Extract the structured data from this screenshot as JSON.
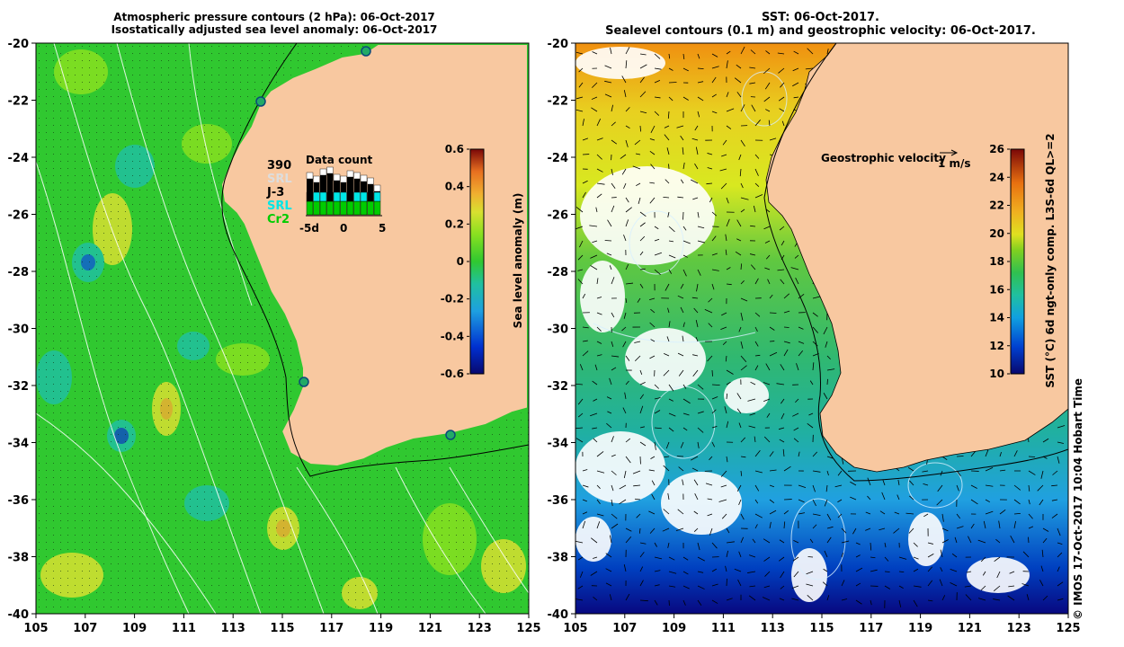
{
  "left_panel": {
    "title_line1": "Atmospheric pressure contours (2 hPa): 06-Oct-2017",
    "title_line2": "Isostatically adjusted sea level anomaly: 06-Oct-2017",
    "colorbar_label": "Sea level anomaly (m)",
    "colorbar_ticks": [
      "0.6",
      "0.4",
      "0.2",
      "0",
      "-0.2",
      "-0.4",
      "-0.6"
    ],
    "data_count": {
      "title": "Data count",
      "labels": [
        {
          "text": "390",
          "color": "#000000"
        },
        {
          "text": "SRL",
          "color": "#dddddd"
        },
        {
          "text": "J-3",
          "color": "#000000"
        },
        {
          "text": "SRL",
          "color": "#00e6e6"
        },
        {
          "text": "Cr2",
          "color": "#00cc00"
        }
      ],
      "x_ticks": [
        "-5d",
        "0",
        "5"
      ]
    }
  },
  "right_panel": {
    "title_line1": "SST: 06-Oct-2017.",
    "title_line2": "Sealevel contours (0.1 m) and geostrophic velocity: 06-Oct-2017.",
    "velocity_label": "Geostrophic velocity",
    "velocity_scale": "1 m/s",
    "colorbar_label": "SST (°C) 6d ngt-only comp. L3S-6d QL>=2",
    "colorbar_ticks": [
      "26",
      "24",
      "22",
      "20",
      "18",
      "16",
      "14",
      "12",
      "10"
    ]
  },
  "axes": {
    "lon_ticks_left": [
      "105",
      "107",
      "109",
      "111",
      "113",
      "115",
      "117",
      "119",
      "121",
      "123",
      "125"
    ],
    "lon_ticks_right": [
      "105",
      "107",
      "109",
      "111",
      "113",
      "115",
      "117",
      "119",
      "121",
      "123",
      "125"
    ],
    "lat_ticks": [
      "-20",
      "-22",
      "-24",
      "-26",
      "-28",
      "-30",
      "-32",
      "-34",
      "-36",
      "-38",
      "-40"
    ]
  },
  "credit": "© IMOS 17-Oct-2017 10:04 Hobart Time",
  "colors": {
    "land": "#f8c8a0",
    "ocean_green": "#30c830",
    "sla_colormap": [
      "#08086e",
      "#0030d0",
      "#1ea0e0",
      "#20c0a0",
      "#30c830",
      "#88e020",
      "#d8e030",
      "#f0b030",
      "#e87020",
      "#c02010",
      "#7a0808"
    ],
    "sst_colormap": [
      "#08086e",
      "#0040d0",
      "#10a0e0",
      "#20c0a0",
      "#30c050",
      "#80d020",
      "#e0e020",
      "#f0b020",
      "#e87010",
      "#c02010",
      "#7a0808"
    ]
  }
}
